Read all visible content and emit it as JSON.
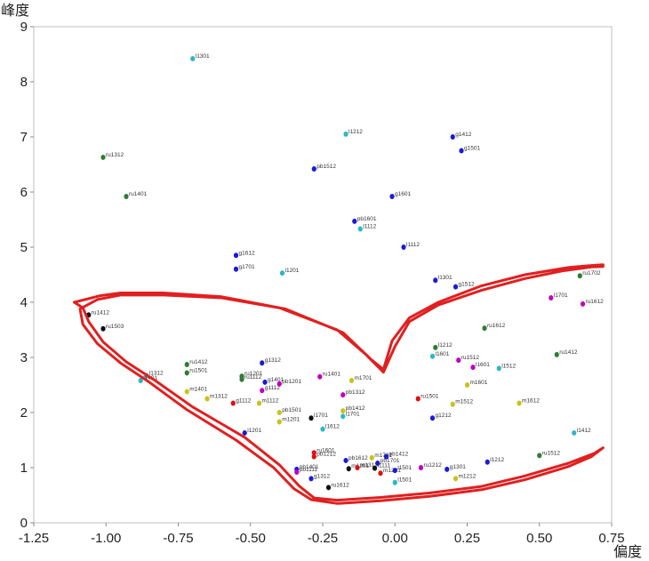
{
  "chart_data": {
    "type": "scatter",
    "title": "",
    "xlabel": "偏度",
    "ylabel": "峰度",
    "xlim": [
      -1.25,
      0.75
    ],
    "ylim": [
      0,
      9
    ],
    "xticks": [
      "-1.25",
      "-1.00",
      "-0.75",
      "-0.50",
      "-0.25",
      "0.00",
      "0.25",
      "0.50",
      "0.75"
    ],
    "yticks": [
      "0",
      "1",
      "2",
      "3",
      "4",
      "5",
      "6",
      "7",
      "8",
      "9"
    ],
    "grid": false,
    "colors": {
      "darkgreen": "#2e7d32",
      "blue": "#1a1ad8",
      "cyan": "#2ab7c8",
      "magenta": "#c000c0",
      "yellow": "#c9c21a",
      "red": "#e01010",
      "black": "#111111",
      "outline": "#e02020"
    },
    "points": [
      {
        "label": "l1301",
        "x": -0.7,
        "y": 8.42,
        "color": "cyan"
      },
      {
        "label": "l1212",
        "x": -0.17,
        "y": 7.05,
        "color": "cyan"
      },
      {
        "label": "g1412",
        "x": 0.2,
        "y": 7.0,
        "color": "blue"
      },
      {
        "label": "g1501",
        "x": 0.23,
        "y": 6.75,
        "color": "blue"
      },
      {
        "label": "ru1312",
        "x": -1.01,
        "y": 6.63,
        "color": "darkgreen"
      },
      {
        "label": "pb1512",
        "x": -0.28,
        "y": 6.42,
        "color": "blue"
      },
      {
        "label": "g1601",
        "x": -0.01,
        "y": 5.92,
        "color": "blue"
      },
      {
        "label": "ru1401",
        "x": -0.93,
        "y": 5.92,
        "color": "darkgreen"
      },
      {
        "label": "pb1601",
        "x": -0.14,
        "y": 5.47,
        "color": "blue"
      },
      {
        "label": "l1112",
        "x": -0.12,
        "y": 5.33,
        "color": "cyan"
      },
      {
        "label": "l1112",
        "x": 0.03,
        "y": 5.0,
        "color": "blue"
      },
      {
        "label": "g1612",
        "x": -0.55,
        "y": 4.85,
        "color": "blue"
      },
      {
        "label": "g1701",
        "x": -0.55,
        "y": 4.6,
        "color": "blue"
      },
      {
        "label": "l1201",
        "x": -0.39,
        "y": 4.53,
        "color": "cyan"
      },
      {
        "label": "l1301",
        "x": 0.14,
        "y": 4.4,
        "color": "blue"
      },
      {
        "label": "g1512",
        "x": 0.21,
        "y": 4.28,
        "color": "blue"
      },
      {
        "label": "ru1702",
        "x": 0.64,
        "y": 4.48,
        "color": "darkgreen"
      },
      {
        "label": "l1701",
        "x": 0.54,
        "y": 4.08,
        "color": "magenta"
      },
      {
        "label": "ru1612",
        "x": 0.65,
        "y": 3.97,
        "color": "magenta"
      },
      {
        "label": "ru1412",
        "x": -1.06,
        "y": 3.77,
        "color": "black"
      },
      {
        "label": "ru1503",
        "x": -1.01,
        "y": 3.52,
        "color": "black"
      },
      {
        "label": "ru1612",
        "x": 0.31,
        "y": 3.53,
        "color": "darkgreen"
      },
      {
        "label": "l1212",
        "x": 0.14,
        "y": 3.18,
        "color": "darkgreen"
      },
      {
        "label": "l1601",
        "x": 0.13,
        "y": 3.02,
        "color": "cyan"
      },
      {
        "label": "ru1412",
        "x": 0.56,
        "y": 3.05,
        "color": "darkgreen"
      },
      {
        "label": "ru1512",
        "x": 0.22,
        "y": 2.95,
        "color": "magenta"
      },
      {
        "label": "l1601",
        "x": 0.27,
        "y": 2.82,
        "color": "magenta"
      },
      {
        "label": "l1512",
        "x": 0.36,
        "y": 2.8,
        "color": "cyan"
      },
      {
        "label": "ru1412",
        "x": -0.72,
        "y": 2.87,
        "color": "darkgreen"
      },
      {
        "label": "ru1501",
        "x": -0.72,
        "y": 2.72,
        "color": "darkgreen"
      },
      {
        "label": "l1312",
        "x": -0.86,
        "y": 2.67,
        "color": "cyan"
      },
      {
        "label": "l1401",
        "x": -0.88,
        "y": 2.58,
        "color": "cyan"
      },
      {
        "label": "g1312",
        "x": -0.46,
        "y": 2.9,
        "color": "blue"
      },
      {
        "label": "ru1201",
        "x": -0.53,
        "y": 2.66,
        "color": "darkgreen"
      },
      {
        "label": "ru1112",
        "x": -0.53,
        "y": 2.6,
        "color": "darkgreen"
      },
      {
        "label": "g1401",
        "x": -0.45,
        "y": 2.55,
        "color": "blue"
      },
      {
        "label": "pb1201",
        "x": -0.4,
        "y": 2.52,
        "color": "magenta"
      },
      {
        "label": "ru1401",
        "x": -0.26,
        "y": 2.65,
        "color": "magenta"
      },
      {
        "label": "m1701",
        "x": -0.15,
        "y": 2.58,
        "color": "yellow"
      },
      {
        "label": "g1112",
        "x": -0.46,
        "y": 2.4,
        "color": "magenta"
      },
      {
        "label": "m1401",
        "x": -0.72,
        "y": 2.38,
        "color": "yellow"
      },
      {
        "label": "m1312",
        "x": -0.65,
        "y": 2.25,
        "color": "yellow"
      },
      {
        "label": "g1112",
        "x": -0.56,
        "y": 2.17,
        "color": "red"
      },
      {
        "label": "m1112",
        "x": -0.47,
        "y": 2.17,
        "color": "yellow"
      },
      {
        "label": "pb1312",
        "x": -0.18,
        "y": 2.32,
        "color": "magenta"
      },
      {
        "label": "ru1501",
        "x": 0.08,
        "y": 2.25,
        "color": "red"
      },
      {
        "label": "m1512",
        "x": 0.2,
        "y": 2.15,
        "color": "yellow"
      },
      {
        "label": "m1601",
        "x": 0.25,
        "y": 2.5,
        "color": "yellow"
      },
      {
        "label": "m1612",
        "x": 0.43,
        "y": 2.17,
        "color": "yellow"
      },
      {
        "label": "pb1501",
        "x": -0.4,
        "y": 2.0,
        "color": "yellow"
      },
      {
        "label": "m1201",
        "x": -0.4,
        "y": 1.83,
        "color": "yellow"
      },
      {
        "label": "l1701",
        "x": -0.29,
        "y": 1.9,
        "color": "black"
      },
      {
        "label": "pb1412",
        "x": -0.18,
        "y": 2.03,
        "color": "yellow"
      },
      {
        "label": "l1701",
        "x": -0.18,
        "y": 1.93,
        "color": "cyan"
      },
      {
        "label": "g1212",
        "x": 0.13,
        "y": 1.9,
        "color": "blue"
      },
      {
        "label": "l1612",
        "x": -0.25,
        "y": 1.7,
        "color": "cyan"
      },
      {
        "label": "l1201",
        "x": -0.52,
        "y": 1.63,
        "color": "blue"
      },
      {
        "label": "l1412",
        "x": 0.62,
        "y": 1.63,
        "color": "cyan"
      },
      {
        "label": "ru1512",
        "x": 0.5,
        "y": 1.22,
        "color": "darkgreen"
      },
      {
        "label": "ru1601",
        "x": -0.28,
        "y": 1.27,
        "color": "red"
      },
      {
        "label": "pb1212",
        "x": -0.28,
        "y": 1.2,
        "color": "red"
      },
      {
        "label": "pb1612",
        "x": -0.17,
        "y": 1.13,
        "color": "blue"
      },
      {
        "label": "m1701",
        "x": -0.08,
        "y": 1.18,
        "color": "yellow"
      },
      {
        "label": "pb1412",
        "x": -0.03,
        "y": 1.2,
        "color": "blue"
      },
      {
        "label": "pb1701",
        "x": -0.06,
        "y": 1.08,
        "color": "blue"
      },
      {
        "label": "l1212",
        "x": 0.32,
        "y": 1.1,
        "color": "blue"
      },
      {
        "label": "ru1212",
        "x": 0.09,
        "y": 1.0,
        "color": "magenta"
      },
      {
        "label": "g1301",
        "x": 0.18,
        "y": 0.97,
        "color": "blue"
      },
      {
        "label": "pb1401",
        "x": -0.34,
        "y": 0.97,
        "color": "blue"
      },
      {
        "label": "pb1111",
        "x": -0.34,
        "y": 0.92,
        "color": "magenta"
      },
      {
        "label": "m1201",
        "x": -0.16,
        "y": 0.98,
        "color": "black"
      },
      {
        "label": "m1312",
        "x": -0.13,
        "y": 1.0,
        "color": "red"
      },
      {
        "label": "l1111",
        "x": -0.07,
        "y": 0.99,
        "color": "black"
      },
      {
        "label": "m1201",
        "x": -0.05,
        "y": 0.9,
        "color": "red"
      },
      {
        "label": "l1501",
        "x": 0.0,
        "y": 0.95,
        "color": "blue"
      },
      {
        "label": "g1312",
        "x": -0.29,
        "y": 0.8,
        "color": "blue"
      },
      {
        "label": "m1212",
        "x": 0.21,
        "y": 0.8,
        "color": "yellow"
      },
      {
        "label": "l1501",
        "x": 0.0,
        "y": 0.73,
        "color": "cyan"
      },
      {
        "label": "ru1612",
        "x": -0.23,
        "y": 0.64,
        "color": "black"
      }
    ],
    "outline": [
      [
        -1.11,
        4.0
      ],
      [
        -1.02,
        4.12
      ],
      [
        -0.95,
        4.17
      ],
      [
        -0.8,
        4.17
      ],
      [
        -0.6,
        4.1
      ],
      [
        -0.4,
        3.9
      ],
      [
        -0.2,
        3.5
      ],
      [
        -0.1,
        3.05
      ],
      [
        -0.04,
        2.73
      ],
      [
        0.0,
        3.2
      ],
      [
        0.05,
        3.65
      ],
      [
        0.15,
        3.95
      ],
      [
        0.3,
        4.22
      ],
      [
        0.45,
        4.43
      ],
      [
        0.58,
        4.57
      ],
      [
        0.68,
        4.64
      ],
      [
        0.72,
        4.65
      ],
      [
        0.72,
        4.68
      ],
      [
        0.66,
        4.66
      ],
      [
        0.6,
        4.63
      ],
      [
        0.45,
        4.5
      ],
      [
        0.3,
        4.3
      ],
      [
        0.15,
        4.0
      ],
      [
        0.05,
        3.72
      ],
      [
        -0.01,
        3.3
      ],
      [
        -0.04,
        2.78
      ],
      [
        -0.08,
        2.95
      ],
      [
        -0.18,
        3.45
      ],
      [
        -0.38,
        3.88
      ],
      [
        -0.6,
        4.08
      ],
      [
        -0.8,
        4.13
      ],
      [
        -0.95,
        4.13
      ],
      [
        -1.03,
        4.05
      ],
      [
        -1.09,
        3.88
      ],
      [
        -1.08,
        3.6
      ],
      [
        -1.03,
        3.25
      ],
      [
        -0.95,
        2.9
      ],
      [
        -0.85,
        2.55
      ],
      [
        -0.72,
        2.05
      ],
      [
        -0.55,
        1.5
      ],
      [
        -0.42,
        1.0
      ],
      [
        -0.35,
        0.62
      ],
      [
        -0.29,
        0.42
      ],
      [
        -0.2,
        0.35
      ],
      [
        -0.05,
        0.4
      ],
      [
        0.12,
        0.48
      ],
      [
        0.3,
        0.6
      ],
      [
        0.45,
        0.78
      ],
      [
        0.6,
        1.02
      ],
      [
        0.68,
        1.2
      ],
      [
        0.72,
        1.36
      ],
      [
        0.69,
        1.26
      ],
      [
        0.6,
        1.08
      ],
      [
        0.45,
        0.85
      ],
      [
        0.3,
        0.66
      ],
      [
        0.12,
        0.54
      ],
      [
        -0.05,
        0.46
      ],
      [
        -0.2,
        0.41
      ],
      [
        -0.28,
        0.45
      ],
      [
        -0.33,
        0.66
      ],
      [
        -0.4,
        1.05
      ],
      [
        -0.52,
        1.55
      ],
      [
        -0.7,
        2.1
      ],
      [
        -0.83,
        2.58
      ],
      [
        -0.93,
        2.92
      ],
      [
        -1.01,
        3.28
      ],
      [
        -1.06,
        3.65
      ],
      [
        -1.08,
        3.9
      ],
      [
        -1.11,
        4.0
      ]
    ]
  }
}
